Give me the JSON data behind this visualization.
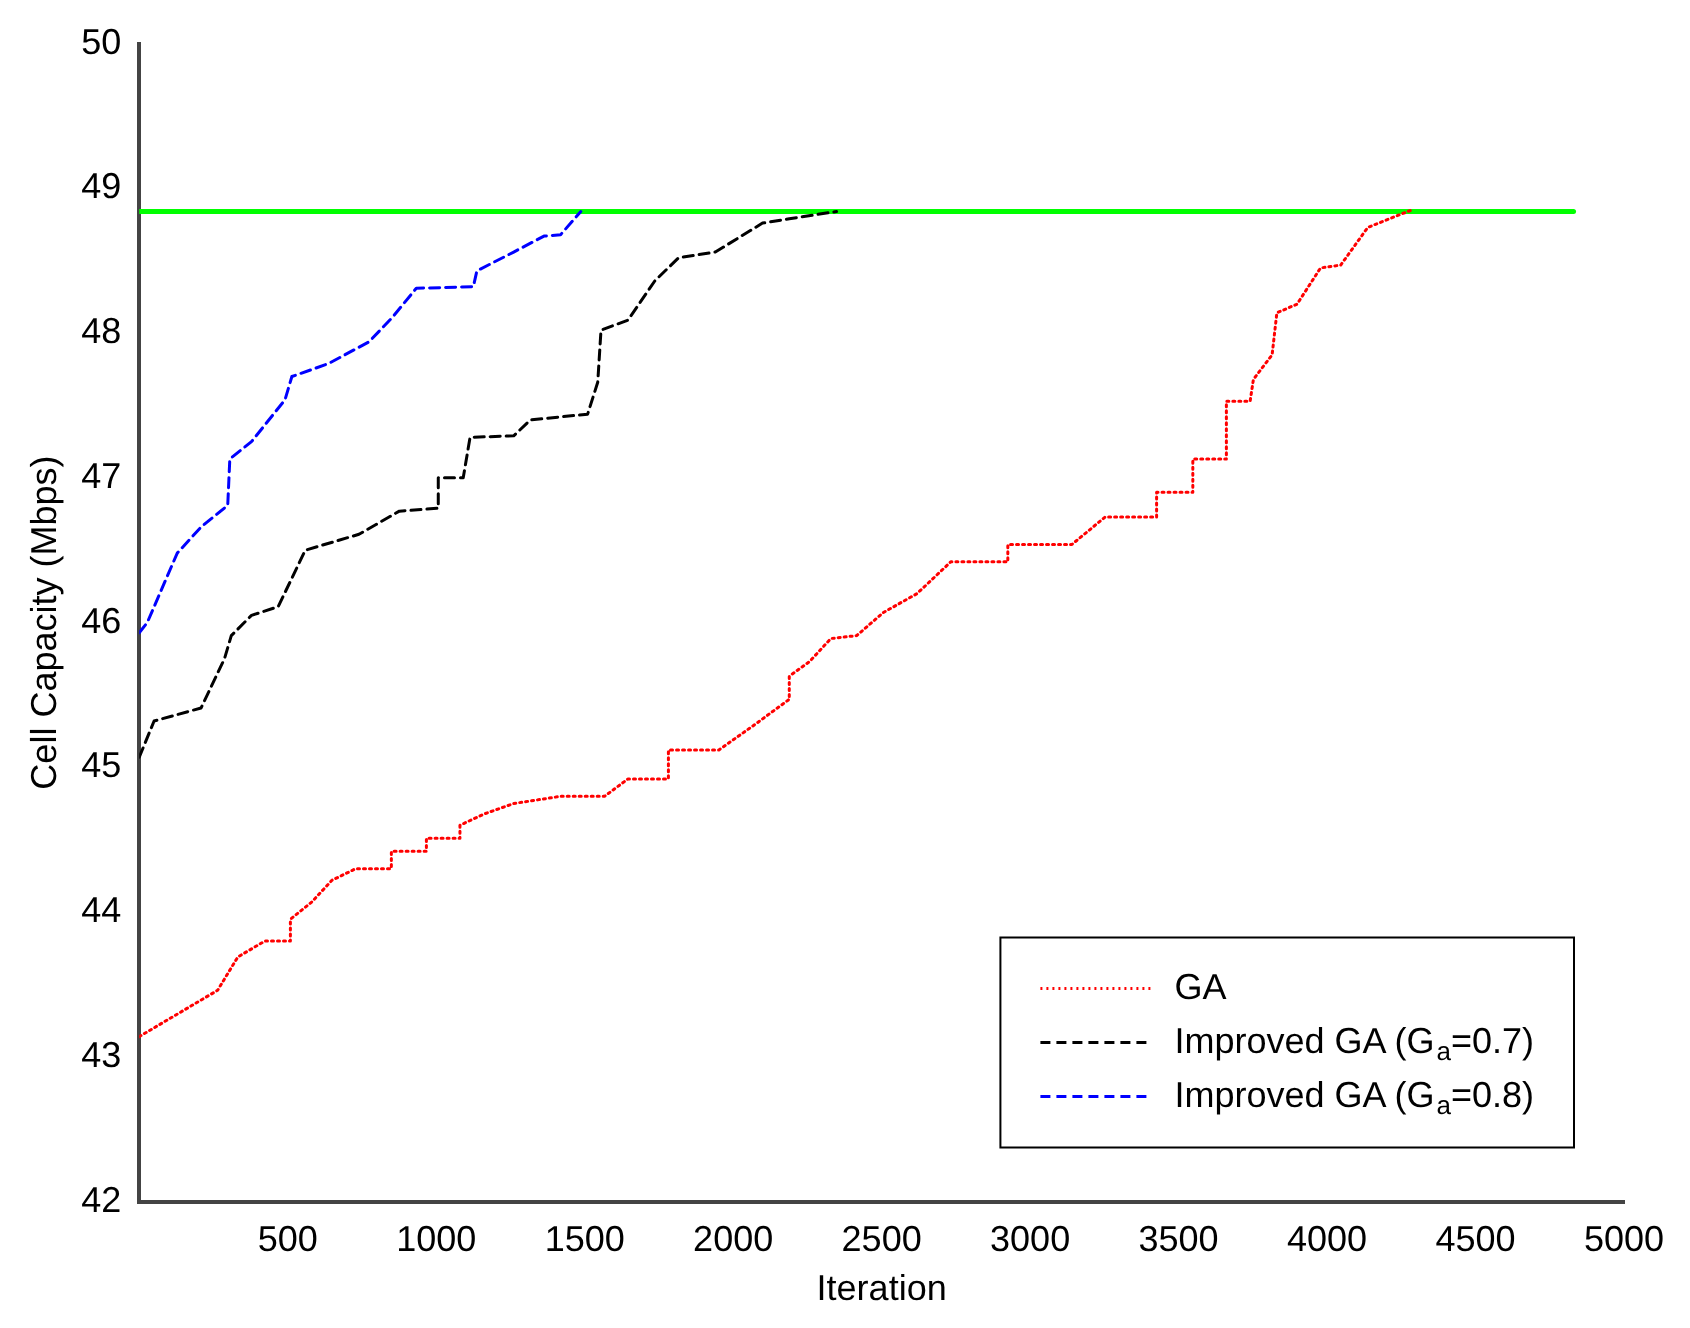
{
  "chart_data": {
    "type": "line",
    "xlabel": "Iteration",
    "ylabel": "Cell Capacity (Mbps)",
    "xlim": [
      0,
      5000
    ],
    "xticks": [
      500,
      1000,
      1500,
      2000,
      2500,
      3000,
      3500,
      4000,
      4500,
      5000
    ],
    "ylim": [
      42,
      50
    ],
    "yticks": [
      42,
      43,
      44,
      45,
      46,
      47,
      48,
      49,
      50
    ],
    "grid": false,
    "legend": "bottom right",
    "marker": "none",
    "series": [
      {
        "color": "#00ff00",
        "line_style": "solid",
        "x": [
          0,
          4830
        ],
        "values": [
          48.84,
          48.84
        ]
      },
      {
        "name": "GA",
        "color": "#ff0000",
        "line_style": "dotted",
        "x": [
          0,
          264,
          332,
          423,
          509,
          509,
          581,
          649,
          729,
          849,
          849,
          967,
          967,
          1080,
          1080,
          1164,
          1261,
          1419,
          1567,
          1646,
          1782,
          1782,
          1952,
          2076,
          2189,
          2189,
          2257,
          2329,
          2416,
          2506,
          2619,
          2733,
          2925,
          2925,
          3141,
          3253,
          3426,
          3426,
          3548,
          3548,
          3661,
          3661,
          3741,
          3752,
          3815,
          3831,
          3899,
          3978,
          4046,
          4137,
          4284
        ],
        "values": [
          43.14,
          43.46,
          43.69,
          43.8,
          43.8,
          43.95,
          44.07,
          44.22,
          44.3,
          44.3,
          44.42,
          44.42,
          44.51,
          44.51,
          44.6,
          44.68,
          44.75,
          44.8,
          44.8,
          44.92,
          44.92,
          45.12,
          45.12,
          45.3,
          45.47,
          45.63,
          45.73,
          45.89,
          45.91,
          46.07,
          46.2,
          46.42,
          46.42,
          46.54,
          46.54,
          46.73,
          46.73,
          46.9,
          46.9,
          47.13,
          47.13,
          47.53,
          47.53,
          47.68,
          47.85,
          48.14,
          48.2,
          48.45,
          48.47,
          48.73,
          48.85
        ]
      },
      {
        "name": "Improved GA (G$_{a}$=0.7)",
        "color": "#000000",
        "line_style": "dashed",
        "x": [
          0,
          50,
          208,
          287,
          310,
          378,
          468,
          559,
          740,
          876,
          1007,
          1007,
          1091,
          1114,
          1261,
          1317,
          1510,
          1544,
          1555,
          1646,
          1736,
          1816,
          1940,
          2099,
          2189,
          2348
        ],
        "values": [
          45.07,
          45.32,
          45.41,
          45.75,
          45.91,
          46.05,
          46.11,
          46.5,
          46.61,
          46.77,
          46.79,
          47.0,
          47.0,
          47.28,
          47.29,
          47.4,
          47.44,
          47.66,
          48.02,
          48.09,
          48.36,
          48.52,
          48.56,
          48.76,
          48.79,
          48.84
        ]
      },
      {
        "name": "Improved GA (G$_{a}$=0.8)",
        "color": "#0000ff",
        "line_style": "dashed",
        "x": [
          0,
          27,
          128,
          208,
          298,
          305,
          378,
          491,
          514,
          638,
          774,
          853,
          933,
          1125,
          1137,
          1261,
          1363,
          1419,
          1487
        ],
        "values": [
          45.93,
          46.0,
          46.48,
          46.66,
          46.81,
          47.13,
          47.25,
          47.54,
          47.7,
          47.79,
          47.94,
          48.11,
          48.31,
          48.32,
          48.43,
          48.56,
          48.67,
          48.68,
          48.84
        ]
      }
    ]
  }
}
